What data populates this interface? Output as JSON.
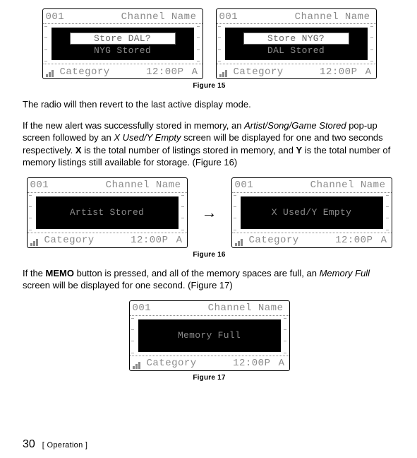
{
  "lcd_common": {
    "channel_num": "001",
    "channel_name": "Channel Name",
    "category": "Category",
    "time": "12:00P",
    "antenna": "A"
  },
  "fig15": {
    "left": {
      "prompt": "Store DAL?",
      "status": "NYG Stored"
    },
    "right": {
      "prompt": "Store NYG?",
      "status": "DAL Stored"
    },
    "caption": "Figure 15"
  },
  "para1": "The radio will then revert to the last active display mode.",
  "para2_a": "If the new alert was successfully stored in memory, an ",
  "para2_i1": "Artist/Song/Game Stored",
  "para2_b": " pop-up screen followed by an ",
  "para2_i2": "X Used/Y Empty",
  "para2_c": " screen will be displayed for one and two seconds respectively. ",
  "para2_boldX": "X",
  "para2_d": " is the total number of listings stored in memory, and ",
  "para2_boldY": "Y",
  "para2_e": " is the total number of memory listings still available for storage. (Figure 16)",
  "fig16": {
    "left": {
      "msg": "Artist Stored"
    },
    "right": {
      "msg": "X Used/Y Empty"
    },
    "caption": "Figure 16"
  },
  "para3_a": "If the ",
  "para3_bold": "MEMO",
  "para3_b": " button is pressed, and all of the memory spaces are full, an ",
  "para3_i": "Memory Full",
  "para3_c": " screen will be displayed for one second. (Figure 17)",
  "fig17": {
    "msg": "Memory Full",
    "caption": "Figure 17"
  },
  "footer": {
    "page": "30",
    "section": "[ Operation ]"
  }
}
